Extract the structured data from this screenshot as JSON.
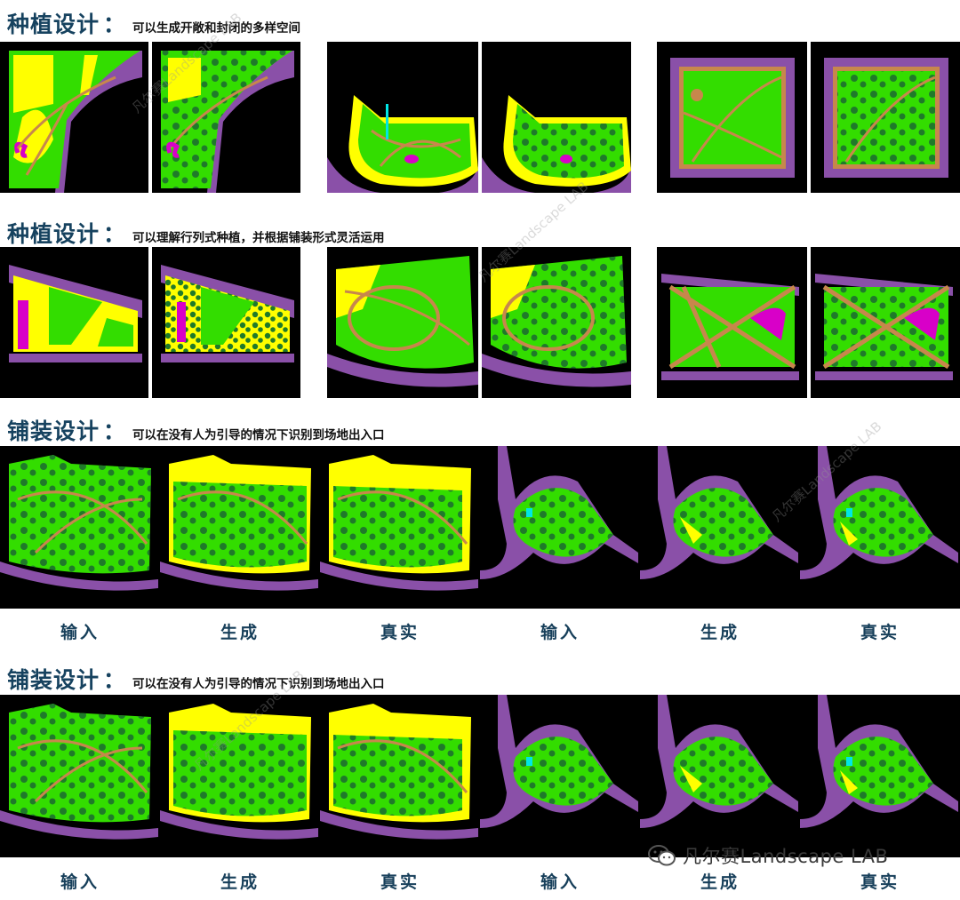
{
  "sections": [
    {
      "title": "种植设计",
      "subtitle": "可以生成开敞和封闭的多样空间"
    },
    {
      "title": "种植设计",
      "subtitle": "可以理解行列式种植，并根据铺装形式灵活运用"
    },
    {
      "title": "铺装设计",
      "subtitle": "可以在没有人为引导的情况下识别到场地出入口"
    },
    {
      "title": "铺装设计",
      "subtitle": "可以在没有人为引导的情况下识别到场地出入口"
    }
  ],
  "captions_row3": [
    "输入",
    "生成",
    "真实",
    "输入",
    "生成",
    "真实"
  ],
  "captions_row4": [
    "输入",
    "生成",
    "真实",
    "输入",
    "生成",
    "真实"
  ],
  "watermark": "凡尔赛Landscape LAB",
  "footer": {
    "brand": "凡尔赛Landscape LAB",
    "icon": "wechat-icon"
  },
  "colors": {
    "green": "#33dd00",
    "yellow": "#ffff00",
    "purple": "#8a50a8",
    "path": "#c7874c",
    "tree": "#1f7a2a",
    "magenta": "#d800c8",
    "cyan": "#00e6e6",
    "background": "#000000"
  }
}
